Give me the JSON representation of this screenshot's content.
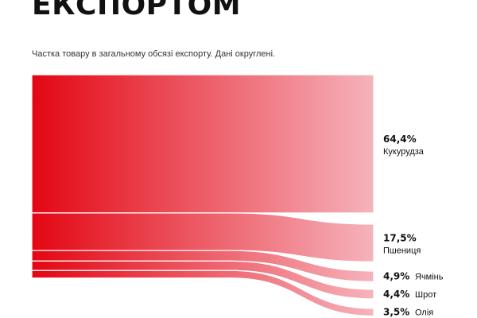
{
  "header": {
    "title": "ЕКСПОРТОМ",
    "subtitle": "Частка товару в загальному обсязі експорту. Дані округлені."
  },
  "colors": {
    "flow_start": "#e30613",
    "flow_end": "#f6b3bb",
    "text": "#111111"
  },
  "chart_data": {
    "type": "sankey",
    "title": "ЕКСПОРТОМ",
    "subtitle": "Частка товару в загальному обсязі експорту. Дані округлені.",
    "unit": "%",
    "categories": [
      "Кукурудза",
      "Пшениця",
      "Ячмінь",
      "Шрот",
      "Олія"
    ],
    "values": [
      64.4,
      17.5,
      4.9,
      4.4,
      3.5
    ],
    "labels": [
      "64,4%",
      "17,5%",
      "4,9%",
      "4,4%",
      "3,5%"
    ]
  }
}
